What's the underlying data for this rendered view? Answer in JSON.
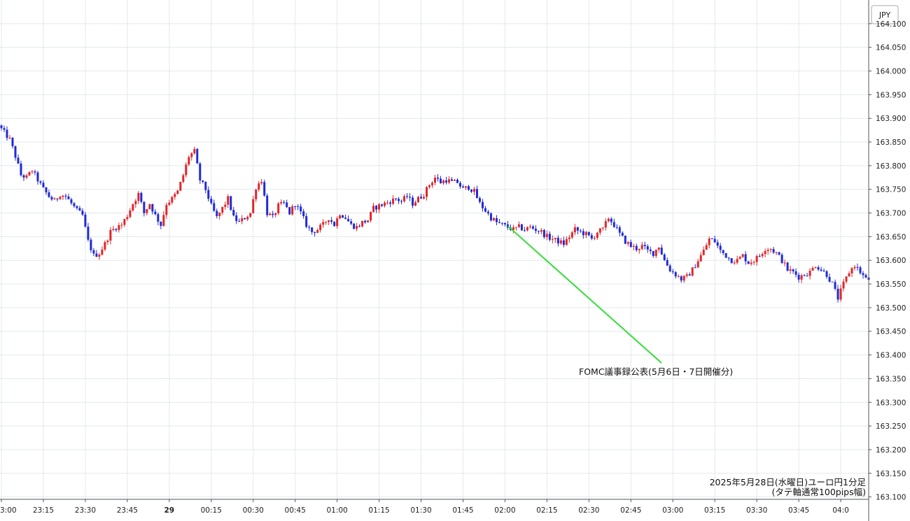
{
  "chart_data": {
    "type": "candlestick",
    "currency_label": "JPY",
    "y_ticks": [
      "164.100",
      "164.050",
      "164.000",
      "163.950",
      "163.900",
      "163.850",
      "163.800",
      "163.750",
      "163.700",
      "163.650",
      "163.600",
      "163.550",
      "163.500",
      "163.450",
      "163.400",
      "163.350",
      "163.300",
      "163.250",
      "163.200",
      "163.150",
      "163.100"
    ],
    "x_ticks": [
      "3:00",
      "23:15",
      "23:30",
      "23:45",
      "29",
      "00:15",
      "00:30",
      "00:45",
      "01:00",
      "01:15",
      "01:30",
      "01:45",
      "02:00",
      "02:15",
      "02:30",
      "02:45",
      "03:00",
      "03:15",
      "03:30",
      "03:45",
      "04:0"
    ],
    "ylim": [
      163.095,
      164.15
    ],
    "up_color": "#e0262a",
    "down_color": "#1f2ad6",
    "annotation": {
      "text": "FOMC議事録公表(5月6日・7日開催分)",
      "line_color": "#33dd33",
      "target_time": "02:58"
    },
    "info": {
      "line1": "2025年5月28日(水曜日)ユーロ円1分足",
      "line2": "(タテ軸通常100pips幅)"
    },
    "anchor_path": [
      [
        0,
        163.885
      ],
      [
        2,
        163.87
      ],
      [
        4,
        163.855
      ],
      [
        6,
        163.82
      ],
      [
        8,
        163.78
      ],
      [
        10,
        163.775
      ],
      [
        12,
        163.79
      ],
      [
        14,
        163.77
      ],
      [
        16,
        163.75
      ],
      [
        18,
        163.735
      ],
      [
        20,
        163.725
      ],
      [
        22,
        163.74
      ],
      [
        24,
        163.735
      ],
      [
        26,
        163.72
      ],
      [
        28,
        163.705
      ],
      [
        30,
        163.695
      ],
      [
        32,
        163.64
      ],
      [
        34,
        163.61
      ],
      [
        36,
        163.615
      ],
      [
        38,
        163.635
      ],
      [
        40,
        163.66
      ],
      [
        42,
        163.67
      ],
      [
        44,
        163.675
      ],
      [
        46,
        163.695
      ],
      [
        48,
        163.72
      ],
      [
        50,
        163.74
      ],
      [
        52,
        163.7
      ],
      [
        54,
        163.72
      ],
      [
        56,
        163.695
      ],
      [
        58,
        163.675
      ],
      [
        60,
        163.72
      ],
      [
        62,
        163.73
      ],
      [
        64,
        163.745
      ],
      [
        66,
        163.78
      ],
      [
        68,
        163.82
      ],
      [
        70,
        163.83
      ],
      [
        72,
        163.77
      ],
      [
        74,
        163.75
      ],
      [
        76,
        163.715
      ],
      [
        78,
        163.69
      ],
      [
        80,
        163.71
      ],
      [
        82,
        163.73
      ],
      [
        84,
        163.69
      ],
      [
        86,
        163.68
      ],
      [
        88,
        163.69
      ],
      [
        90,
        163.7
      ],
      [
        92,
        163.755
      ],
      [
        94,
        163.77
      ],
      [
        96,
        163.7
      ],
      [
        98,
        163.69
      ],
      [
        100,
        163.715
      ],
      [
        102,
        163.72
      ],
      [
        104,
        163.7
      ],
      [
        106,
        163.72
      ],
      [
        108,
        163.7
      ],
      [
        110,
        163.675
      ],
      [
        112,
        163.66
      ],
      [
        114,
        163.665
      ],
      [
        116,
        163.675
      ],
      [
        118,
        163.69
      ],
      [
        120,
        163.675
      ],
      [
        122,
        163.7
      ],
      [
        124,
        163.69
      ],
      [
        126,
        163.675
      ],
      [
        128,
        163.67
      ],
      [
        130,
        163.68
      ],
      [
        132,
        163.685
      ],
      [
        134,
        163.71
      ],
      [
        136,
        163.715
      ],
      [
        138,
        163.72
      ],
      [
        140,
        163.725
      ],
      [
        142,
        163.73
      ],
      [
        144,
        163.725
      ],
      [
        146,
        163.735
      ],
      [
        148,
        163.72
      ],
      [
        150,
        163.73
      ],
      [
        152,
        163.74
      ],
      [
        154,
        163.76
      ],
      [
        156,
        163.775
      ],
      [
        158,
        163.765
      ],
      [
        160,
        163.77
      ],
      [
        162,
        163.765
      ],
      [
        164,
        163.765
      ],
      [
        166,
        163.75
      ],
      [
        168,
        163.755
      ],
      [
        170,
        163.745
      ],
      [
        172,
        163.72
      ],
      [
        174,
        163.705
      ],
      [
        176,
        163.69
      ],
      [
        178,
        163.68
      ],
      [
        180,
        163.675
      ],
      [
        182,
        163.67
      ],
      [
        184,
        163.665
      ],
      [
        186,
        163.67
      ],
      [
        188,
        163.665
      ],
      [
        190,
        163.67
      ],
      [
        192,
        163.665
      ],
      [
        194,
        163.66
      ],
      [
        196,
        163.65
      ],
      [
        198,
        163.645
      ],
      [
        200,
        163.64
      ],
      [
        202,
        163.635
      ],
      [
        204,
        163.65
      ],
      [
        206,
        163.665
      ],
      [
        208,
        163.66
      ],
      [
        210,
        163.655
      ],
      [
        212,
        163.645
      ],
      [
        214,
        163.66
      ],
      [
        216,
        163.665
      ],
      [
        218,
        163.69
      ],
      [
        220,
        163.675
      ],
      [
        222,
        163.655
      ],
      [
        224,
        163.64
      ],
      [
        226,
        163.63
      ],
      [
        228,
        163.625
      ],
      [
        230,
        163.63
      ],
      [
        232,
        163.62
      ],
      [
        234,
        163.615
      ],
      [
        236,
        163.63
      ],
      [
        238,
        163.6
      ],
      [
        240,
        163.58
      ],
      [
        242,
        163.57
      ],
      [
        244,
        163.56
      ],
      [
        246,
        163.565
      ],
      [
        248,
        163.58
      ],
      [
        250,
        163.6
      ],
      [
        252,
        163.62
      ],
      [
        254,
        163.645
      ],
      [
        256,
        163.64
      ],
      [
        258,
        163.62
      ],
      [
        260,
        163.61
      ],
      [
        262,
        163.6
      ],
      [
        264,
        163.6
      ],
      [
        266,
        163.61
      ],
      [
        268,
        163.595
      ],
      [
        270,
        163.6
      ],
      [
        272,
        163.61
      ],
      [
        274,
        163.625
      ],
      [
        276,
        163.625
      ],
      [
        278,
        163.615
      ],
      [
        280,
        163.6
      ],
      [
        282,
        163.58
      ],
      [
        284,
        163.575
      ],
      [
        286,
        163.565
      ],
      [
        288,
        163.57
      ],
      [
        290,
        163.575
      ],
      [
        292,
        163.59
      ],
      [
        294,
        163.58
      ],
      [
        296,
        163.57
      ],
      [
        298,
        163.55
      ],
      [
        300,
        163.52
      ],
      [
        302,
        163.55
      ],
      [
        304,
        163.575
      ],
      [
        306,
        163.59
      ],
      [
        308,
        163.575
      ],
      [
        310,
        163.56
      ]
    ]
  }
}
